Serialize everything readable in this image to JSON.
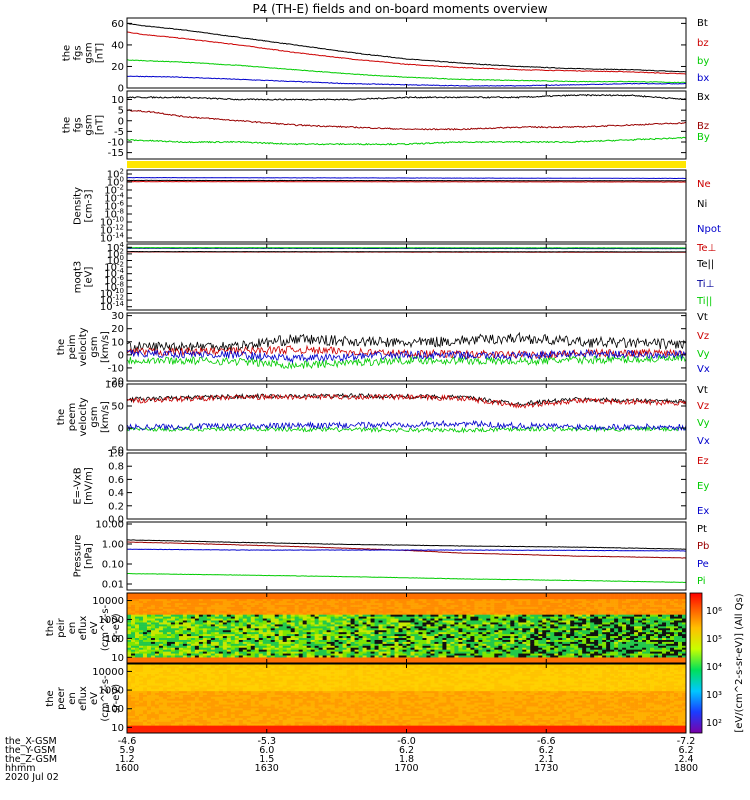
{
  "title": "P4 (TH-E) fields and on-board moments overview",
  "chart_data": [
    {
      "id": "fgs_gsm",
      "type": "line",
      "ylabel": [
        "the",
        "fgs",
        "gsm",
        "[nT]"
      ],
      "ylim": [
        0,
        65
      ],
      "yticks": [
        0,
        20,
        40,
        60
      ],
      "tick_labels": [
        "0",
        "20",
        "40",
        "60"
      ],
      "series": [
        {
          "name": "Bt",
          "color": "#000000",
          "x": [
            0,
            5,
            20,
            40,
            60,
            80,
            100,
            120,
            140,
            160,
            180,
            200
          ],
          "y": [
            60,
            58,
            54,
            47,
            40,
            33,
            27,
            23,
            20,
            18,
            17,
            15
          ]
        },
        {
          "name": "bz",
          "color": "#cc0000",
          "x": [
            0,
            5,
            20,
            40,
            60,
            80,
            100,
            120,
            140,
            160,
            180,
            200
          ],
          "y": [
            52,
            50,
            46,
            40,
            33,
            27,
            22,
            19,
            17,
            16,
            15,
            13
          ]
        },
        {
          "name": "by",
          "color": "#00cc00",
          "x": [
            0,
            20,
            40,
            60,
            80,
            100,
            120,
            140,
            160,
            180,
            200
          ],
          "y": [
            26,
            24,
            21,
            17,
            13,
            10,
            8,
            7,
            6,
            6,
            5
          ]
        },
        {
          "name": "bx",
          "color": "#0000cc",
          "x": [
            0,
            20,
            40,
            60,
            80,
            100,
            120,
            140,
            160,
            180,
            200
          ],
          "y": [
            11,
            10,
            8,
            6,
            4,
            3,
            2,
            2,
            3,
            4,
            4
          ]
        }
      ]
    },
    {
      "id": "fgs_gsm_2",
      "type": "line",
      "ylabel": [
        "the",
        "fgs",
        "gsm",
        "[nT]"
      ],
      "ylim": [
        -18,
        14
      ],
      "yticks": [
        -15,
        -10,
        -5,
        0,
        5,
        10
      ],
      "tick_labels": [
        "-15",
        "-10",
        "-5",
        "0",
        "5",
        "10"
      ],
      "series": [
        {
          "name": "Bx",
          "color": "#000000",
          "x": [
            0,
            20,
            40,
            60,
            80,
            100,
            120,
            140,
            160,
            180,
            200
          ],
          "y": [
            11,
            11,
            10,
            10,
            10,
            11,
            11,
            11,
            12,
            12,
            10
          ]
        },
        {
          "name": "Bz",
          "color": "#990000",
          "x": [
            0,
            10,
            20,
            40,
            60,
            80,
            100,
            120,
            140,
            160,
            180,
            200
          ],
          "y": [
            5,
            4,
            2,
            0,
            -2,
            -3,
            -4,
            -4,
            -3,
            -3,
            -2,
            -1
          ]
        },
        {
          "name": "By",
          "color": "#00cc00",
          "x": [
            0,
            20,
            40,
            60,
            80,
            100,
            120,
            140,
            160,
            180,
            200
          ],
          "y": [
            -9,
            -10,
            -10,
            -11,
            -11,
            -11,
            -10,
            -10,
            -10,
            -9,
            -8
          ]
        }
      ]
    },
    {
      "id": "density",
      "type": "line",
      "log": true,
      "ylabel": [
        "Density",
        "[cm-3]"
      ],
      "ylim_exp": [
        -15,
        3
      ],
      "yticks_exp": [
        -14,
        -12,
        -10,
        -8,
        -6,
        -4,
        -2,
        0,
        2
      ],
      "series": [
        {
          "name": "Ne",
          "color": "#cc0000",
          "x": [
            0,
            200
          ],
          "y_exp": [
            0.1,
            0.0
          ]
        },
        {
          "name": "Ni",
          "color": "#000000",
          "x": [
            0,
            200
          ],
          "y_exp": [
            0.4,
            0.3
          ]
        },
        {
          "name": "Npot",
          "color": "#0000cc",
          "x": [
            0,
            200
          ],
          "y_exp": [
            1.1,
            0.9
          ]
        }
      ]
    },
    {
      "id": "temperature",
      "type": "line",
      "log": true,
      "ylabel": [
        "moqt3",
        "[eV]"
      ],
      "ylim_exp": [
        -15,
        5
      ],
      "yticks_exp": [
        -14,
        -12,
        -10,
        -8,
        -6,
        -4,
        -2,
        0,
        2,
        4
      ],
      "series": [
        {
          "name": "Te⊥",
          "color": "#cc0000",
          "x": [
            0,
            200
          ],
          "y_exp": [
            2.6,
            2.5
          ]
        },
        {
          "name": "Te||",
          "color": "#000000",
          "x": [
            0,
            200
          ],
          "y_exp": [
            2.7,
            2.6
          ]
        },
        {
          "name": "Ti⊥",
          "color": "#000099",
          "x": [
            0,
            200
          ],
          "y_exp": [
            3.7,
            3.6
          ]
        },
        {
          "name": "Ti||",
          "color": "#00cc00",
          "x": [
            0,
            200
          ],
          "y_exp": [
            3.9,
            3.8
          ]
        }
      ]
    },
    {
      "id": "peim_velocity",
      "type": "line",
      "ylabel": [
        "the",
        "peim",
        "velocity",
        "gsm",
        "[km/s]"
      ],
      "ylim": [
        -20,
        32
      ],
      "yticks": [
        -20,
        -10,
        0,
        10,
        20,
        30
      ],
      "tick_labels": [
        "-20",
        "-10",
        "0",
        "10",
        "20",
        "30"
      ],
      "series": [
        {
          "name": "Vt",
          "color": "#000000",
          "x": [
            0,
            40,
            60,
            100,
            140,
            160,
            200
          ],
          "y": [
            6,
            7,
            12,
            9,
            13,
            10,
            8
          ]
        },
        {
          "name": "Vz",
          "color": "#cc0000",
          "x": [
            0,
            40,
            60,
            100,
            140,
            160,
            200
          ],
          "y": [
            2,
            3,
            4,
            1,
            0,
            1,
            2
          ]
        },
        {
          "name": "Vy",
          "color": "#00cc00",
          "x": [
            0,
            40,
            60,
            100,
            140,
            160,
            200
          ],
          "y": [
            -4,
            -5,
            -8,
            -4,
            -5,
            -4,
            -3
          ]
        },
        {
          "name": "Vx",
          "color": "#0000cc",
          "x": [
            0,
            40,
            60,
            100,
            140,
            160,
            200
          ],
          "y": [
            1,
            0,
            -3,
            0,
            -1,
            1,
            0
          ]
        }
      ]
    },
    {
      "id": "peem_velocity",
      "type": "line",
      "ylabel": [
        "the",
        "peem",
        "velocity",
        "gsm",
        "[km/s]"
      ],
      "ylim": [
        -50,
        100
      ],
      "yticks": [
        -50,
        0,
        50,
        100
      ],
      "tick_labels": [
        "-50",
        "0",
        "50",
        "100"
      ],
      "series": [
        {
          "name": "Vt",
          "color": "#000000",
          "x": [
            0,
            40,
            80,
            120,
            140,
            160,
            200
          ],
          "y": [
            65,
            72,
            73,
            70,
            55,
            65,
            60
          ]
        },
        {
          "name": "Vz",
          "color": "#cc0000",
          "x": [
            0,
            40,
            80,
            120,
            140,
            160,
            200
          ],
          "y": [
            62,
            70,
            71,
            68,
            50,
            62,
            57
          ]
        },
        {
          "name": "Vy",
          "color": "#00cc00",
          "x": [
            0,
            40,
            80,
            120,
            140,
            160,
            200
          ],
          "y": [
            -3,
            -2,
            -4,
            -5,
            -2,
            -3,
            -2
          ]
        },
        {
          "name": "Vx",
          "color": "#0000cc",
          "x": [
            0,
            40,
            80,
            120,
            140,
            160,
            200
          ],
          "y": [
            2,
            4,
            6,
            10,
            5,
            3,
            2
          ]
        }
      ]
    },
    {
      "id": "efield",
      "type": "line",
      "ylabel": [
        "E=-VxB",
        "[mV/m]"
      ],
      "ylim": [
        0,
        1
      ],
      "yticks": [
        0,
        0.2,
        0.4,
        0.6,
        0.8,
        1.0
      ],
      "tick_labels": [
        "0.0",
        "0.2",
        "0.4",
        "0.6",
        "0.8",
        "1.0"
      ],
      "series": [
        {
          "name": "Ez",
          "color": "#cc0000",
          "x": [],
          "y": []
        },
        {
          "name": "Ey",
          "color": "#00cc00",
          "x": [],
          "y": []
        },
        {
          "name": "Ex",
          "color": "#0000cc",
          "x": [],
          "y": []
        }
      ]
    },
    {
      "id": "pressure",
      "type": "line",
      "log": true,
      "ylabel": [
        "Pressure",
        "[nPa]"
      ],
      "ylim_exp": [
        -2.3,
        1.1
      ],
      "yticks_exp": [
        -2,
        -1,
        0,
        1
      ],
      "tick_labels": [
        "0.01",
        "0.10",
        "1.00",
        "10.00"
      ],
      "series": [
        {
          "name": "Pt",
          "color": "#000000",
          "x": [
            0,
            40,
            80,
            120,
            160,
            200
          ],
          "y": [
            1.6,
            1.2,
            0.95,
            0.8,
            0.7,
            0.55
          ]
        },
        {
          "name": "Pb",
          "color": "#990000",
          "x": [
            0,
            40,
            80,
            120,
            160,
            200
          ],
          "y": [
            1.25,
            0.9,
            0.6,
            0.35,
            0.25,
            0.2
          ]
        },
        {
          "name": "Pe",
          "color": "#0000cc",
          "x": [
            0,
            40,
            80,
            120,
            160,
            200
          ],
          "y": [
            0.55,
            0.5,
            0.5,
            0.5,
            0.48,
            0.45
          ]
        },
        {
          "name": "Pi",
          "color": "#00cc00",
          "x": [
            0,
            40,
            80,
            120,
            160,
            200
          ],
          "y": [
            0.033,
            0.028,
            0.023,
            0.018,
            0.015,
            0.012
          ]
        }
      ]
    },
    {
      "id": "peir_spectrogram",
      "type": "heatmap",
      "ylabel": [
        "the",
        "peir",
        "en",
        "eflux",
        "eV",
        "(cm^2-s-",
        "sr-eV)"
      ],
      "ylim": [
        5,
        25000
      ],
      "log_y": true,
      "tick_labels": [
        "10",
        "100",
        "1000",
        "10000"
      ]
    },
    {
      "id": "peer_spectrogram",
      "type": "heatmap",
      "ylabel": [
        "the",
        "peer",
        "en",
        "eflux",
        "eV",
        "(cm^2-s-",
        "sr-eV)"
      ],
      "ylim": [
        5,
        25000
      ],
      "log_y": true,
      "tick_labels": [
        "10",
        "100",
        "1000",
        "10000"
      ]
    }
  ],
  "colorbar": {
    "label": "[eV/(cm^2-s-sr-eV)] (All Qs)",
    "tick_labels": [
      "10²",
      "10³",
      "10⁴",
      "10⁵",
      "10⁶"
    ]
  },
  "xaxis": {
    "row_labels": [
      "the_X-GSM",
      "the_Y-GSM",
      "the_Z-GSM",
      "hhmm",
      "2020 Jul 02"
    ],
    "columns": [
      {
        "x": 0,
        "vals": [
          "-4.6",
          "5.9",
          "1.2",
          "1600"
        ]
      },
      {
        "x": 30,
        "vals": [
          "-5.3",
          "6.0",
          "1.5",
          "1630"
        ]
      },
      {
        "x": 60,
        "vals": [
          "-6.0",
          "6.2",
          "1.8",
          "1700"
        ]
      },
      {
        "x": 90,
        "vals": [
          "-6.6",
          "6.2",
          "2.1",
          "1730"
        ]
      },
      {
        "x": 120,
        "vals": [
          "-7.2",
          "6.2",
          "2.4",
          "1800"
        ]
      }
    ]
  }
}
